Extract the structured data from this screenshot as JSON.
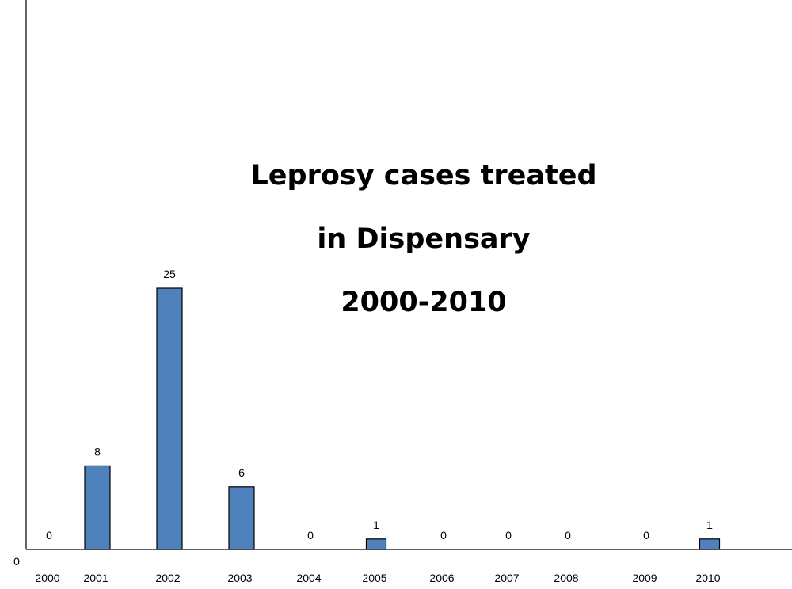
{
  "chart_data": {
    "type": "bar",
    "title_lines": [
      "Leprosy cases treated",
      "in Dispensary",
      "2000-2010"
    ],
    "categories": [
      "2000",
      "2001",
      "2002",
      "2003",
      "2004",
      "2005",
      "2006",
      "2007",
      "2008",
      "2009",
      "2010"
    ],
    "values": [
      0,
      8,
      25,
      6,
      0,
      1,
      0,
      0,
      0,
      0,
      1
    ],
    "data_labels": [
      "0",
      "8",
      "25",
      "6",
      "0",
      "1",
      "0",
      "0",
      "0",
      "0",
      "1"
    ],
    "y_tick_labels": [
      "0"
    ],
    "xlabel": "",
    "ylabel": "",
    "grid": false,
    "legend": "none",
    "bar_color": "#4f81bd",
    "bar_edge_color": "#000000"
  }
}
